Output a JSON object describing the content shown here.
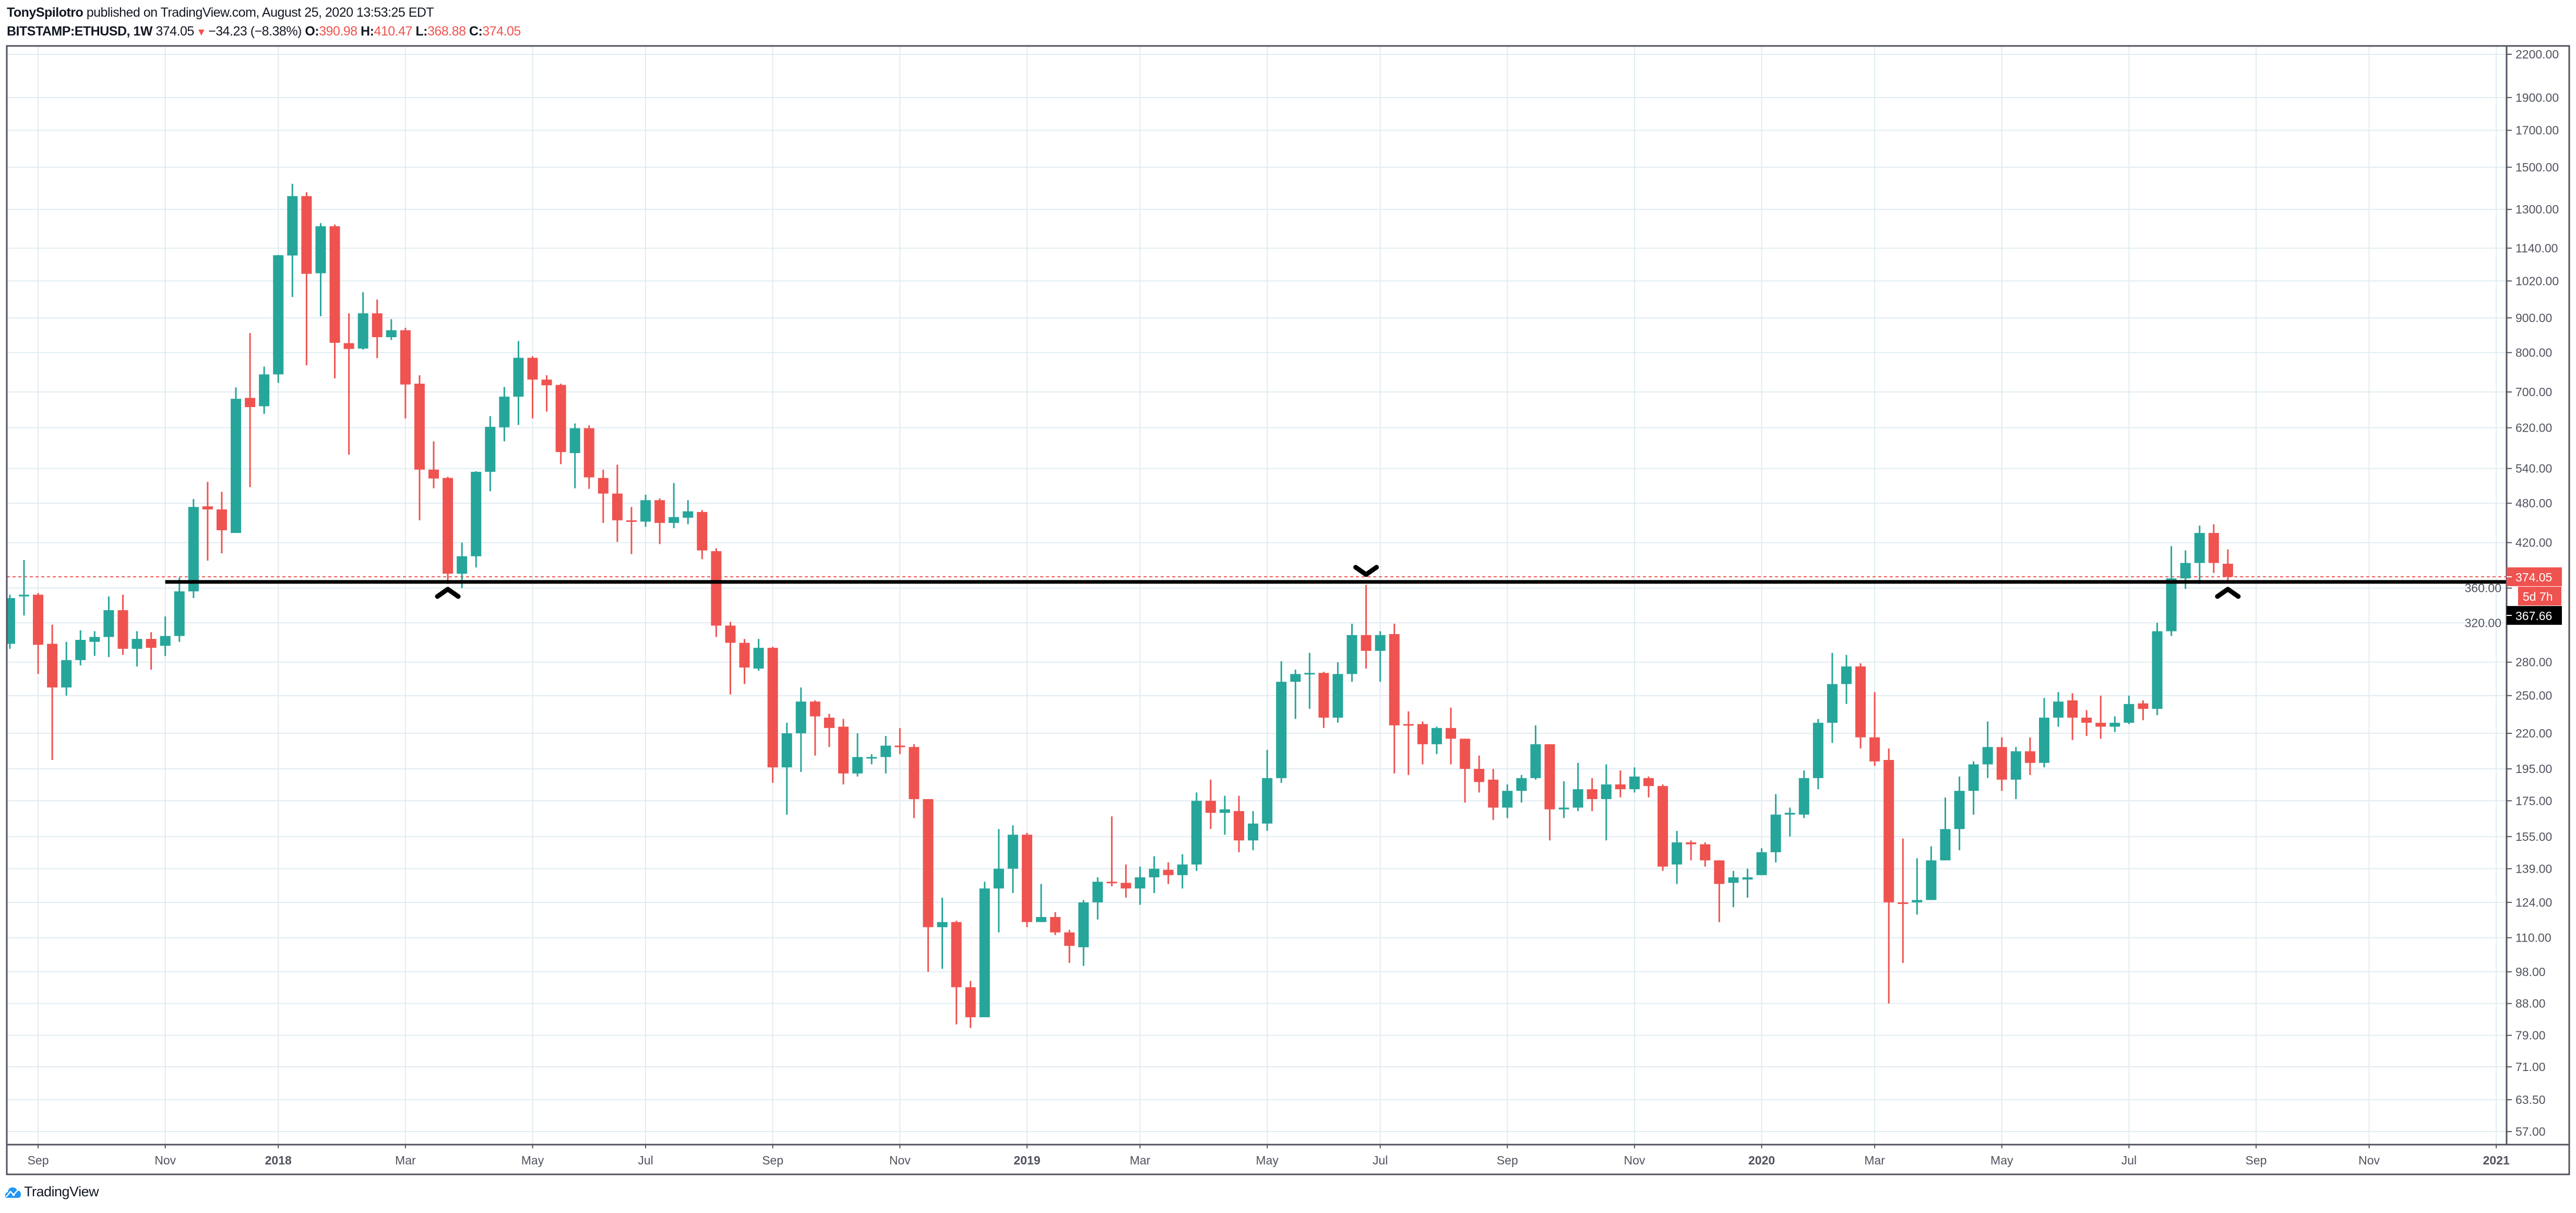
{
  "header": {
    "author": "TonySpilotro",
    "published": "published on TradingView.com, August 25, 2020 13:53:25 EDT",
    "symbol": "BITSTAMP:ETHUSD, 1W",
    "last": "374.05",
    "change": "−34.23 (−8.38%)",
    "open_label": "O:",
    "open": "390.98",
    "high_label": "H:",
    "high": "410.47",
    "low_label": "L:",
    "low": "368.88",
    "close_label": "C:",
    "close": "374.05"
  },
  "footer": {
    "brand": "TradingView"
  },
  "colors": {
    "up": "#26a69a",
    "down": "#ef5350",
    "grid": "#e1ecf2",
    "axis": "#50535e",
    "level_line": "#000000"
  },
  "chart_data": {
    "type": "candlestick",
    "symbol": "BITSTAMP:ETHUSD",
    "interval": "1W",
    "y_scale": "log",
    "grid": true,
    "price_axis": {
      "labels": [
        "2200.00",
        "1900.00",
        "1700.00",
        "1500.00",
        "1300.00",
        "1140.00",
        "1020.00",
        "900.00",
        "800.00",
        "700.00",
        "620.00",
        "540.00",
        "480.00",
        "420.00",
        "360.00",
        "320.00",
        "280.00",
        "250.00",
        "220.00",
        "195.00",
        "175.00",
        "155.00",
        "139.00",
        "124.00",
        "110.00",
        "98.00",
        "88.00",
        "79.00",
        "71.00",
        "63.50",
        "57.00"
      ]
    },
    "time_axis": {
      "ticks": [
        {
          "label": "Sep",
          "date": "2017-09-04"
        },
        {
          "label": "Nov",
          "date": "2017-11-06"
        },
        {
          "label": "2018",
          "date": "2018-01-01",
          "year": true
        },
        {
          "label": "Mar",
          "date": "2018-03-05"
        },
        {
          "label": "May",
          "date": "2018-05-07"
        },
        {
          "label": "Jul",
          "date": "2018-07-02"
        },
        {
          "label": "Sep",
          "date": "2018-09-03"
        },
        {
          "label": "Nov",
          "date": "2018-11-05"
        },
        {
          "label": "2019",
          "date": "2019-01-07",
          "year": true
        },
        {
          "label": "Mar",
          "date": "2019-03-04"
        },
        {
          "label": "May",
          "date": "2019-05-06"
        },
        {
          "label": "Jul",
          "date": "2019-07-01"
        },
        {
          "label": "Sep",
          "date": "2019-09-02"
        },
        {
          "label": "Nov",
          "date": "2019-11-04"
        },
        {
          "label": "2020",
          "date": "2020-01-06",
          "year": true
        },
        {
          "label": "Mar",
          "date": "2020-03-02"
        },
        {
          "label": "May",
          "date": "2020-05-04"
        },
        {
          "label": "Jul",
          "date": "2020-07-06"
        },
        {
          "label": "Sep",
          "date": "2020-09-07"
        },
        {
          "label": "Nov",
          "date": "2020-11-02"
        },
        {
          "label": "2021",
          "date": "2021-01-04",
          "year": true
        }
      ]
    },
    "last_price": {
      "value": 374.05,
      "label": "374.05",
      "countdown": "5d 7h"
    },
    "level": {
      "value": 367.66,
      "label": "367.66",
      "from": "2017-11-06"
    },
    "markers": [
      {
        "date": "2018-03-26",
        "shape": "chevron-up"
      },
      {
        "date": "2019-06-24",
        "shape": "chevron-down"
      },
      {
        "date": "2020-08-24",
        "shape": "chevron-up"
      }
    ],
    "candles_fields": [
      "date",
      "open",
      "high",
      "low",
      "close"
    ],
    "candles": [
      [
        "2017-08-21",
        298,
        352,
        293,
        348
      ],
      [
        "2017-08-28",
        350,
        396,
        328,
        352
      ],
      [
        "2017-09-04",
        352,
        354,
        269,
        297
      ],
      [
        "2017-09-11",
        298,
        318,
        201,
        257
      ],
      [
        "2017-09-18",
        257,
        300,
        250,
        282
      ],
      [
        "2017-09-25",
        282,
        312,
        277,
        302
      ],
      [
        "2017-10-02",
        300,
        311,
        286,
        305
      ],
      [
        "2017-10-09",
        305,
        350,
        285,
        334
      ],
      [
        "2017-10-16",
        334,
        352,
        287,
        293
      ],
      [
        "2017-10-23",
        293,
        311,
        276,
        303
      ],
      [
        "2017-10-30",
        303,
        310,
        273,
        294
      ],
      [
        "2017-11-06",
        296,
        327,
        286,
        306
      ],
      [
        "2017-11-13",
        306,
        373,
        300,
        356
      ],
      [
        "2017-11-20",
        356,
        487,
        348,
        474
      ],
      [
        "2017-11-27",
        475,
        516,
        395,
        470
      ],
      [
        "2017-12-04",
        470,
        499,
        405,
        438
      ],
      [
        "2017-12-11",
        434,
        711,
        434,
        684
      ],
      [
        "2017-12-18",
        686,
        855,
        507,
        665
      ],
      [
        "2017-12-25",
        667,
        763,
        650,
        743
      ],
      [
        "2018-01-01",
        743,
        1114,
        722,
        1113
      ],
      [
        "2018-01-08",
        1112,
        1418,
        966,
        1360
      ],
      [
        "2018-01-15",
        1360,
        1378,
        766,
        1045
      ],
      [
        "2018-01-22",
        1047,
        1241,
        905,
        1228
      ],
      [
        "2018-01-29",
        1228,
        1235,
        733,
        827
      ],
      [
        "2018-02-05",
        826,
        914,
        566,
        810
      ],
      [
        "2018-02-12",
        811,
        982,
        808,
        914
      ],
      [
        "2018-02-19",
        914,
        958,
        785,
        843
      ],
      [
        "2018-02-26",
        843,
        896,
        835,
        863
      ],
      [
        "2018-03-05",
        863,
        870,
        640,
        718
      ],
      [
        "2018-03-12",
        720,
        741,
        453,
        538
      ],
      [
        "2018-03-19",
        538,
        592,
        505,
        522
      ],
      [
        "2018-03-26",
        523,
        525,
        365,
        378
      ],
      [
        "2018-04-02",
        378,
        420,
        360,
        401
      ],
      [
        "2018-04-09",
        401,
        535,
        386,
        534
      ],
      [
        "2018-04-16",
        534,
        645,
        500,
        622
      ],
      [
        "2018-04-23",
        621,
        712,
        592,
        689
      ],
      [
        "2018-04-30",
        689,
        832,
        626,
        786
      ],
      [
        "2018-05-07",
        786,
        790,
        640,
        730
      ],
      [
        "2018-05-14",
        730,
        741,
        655,
        716
      ],
      [
        "2018-05-21",
        717,
        720,
        548,
        571
      ],
      [
        "2018-05-28",
        569,
        629,
        505,
        619
      ],
      [
        "2018-06-04",
        619,
        625,
        504,
        524
      ],
      [
        "2018-06-11",
        523,
        538,
        449,
        496
      ],
      [
        "2018-06-18",
        496,
        547,
        421,
        453
      ],
      [
        "2018-06-25",
        453,
        474,
        404,
        451
      ],
      [
        "2018-07-02",
        451,
        494,
        443,
        485
      ],
      [
        "2018-07-09",
        485,
        488,
        418,
        449
      ],
      [
        "2018-07-16",
        449,
        514,
        441,
        458
      ],
      [
        "2018-07-23",
        457,
        485,
        447,
        467
      ],
      [
        "2018-07-30",
        466,
        469,
        397,
        409
      ],
      [
        "2018-08-06",
        408,
        412,
        305,
        317
      ],
      [
        "2018-08-13",
        317,
        321,
        251,
        299
      ],
      [
        "2018-08-20",
        299,
        303,
        260,
        275
      ],
      [
        "2018-08-27",
        274,
        303,
        272,
        294
      ],
      [
        "2018-09-03",
        294,
        295,
        186,
        196
      ],
      [
        "2018-09-10",
        196,
        228,
        167,
        220
      ],
      [
        "2018-09-17",
        220,
        257,
        193,
        245
      ],
      [
        "2018-09-24",
        245,
        246,
        204,
        233
      ],
      [
        "2018-10-01",
        232,
        235,
        210,
        224
      ],
      [
        "2018-10-08",
        225,
        231,
        185,
        192
      ],
      [
        "2018-10-15",
        192,
        220,
        190,
        203
      ],
      [
        "2018-10-22",
        202,
        205,
        198,
        203
      ],
      [
        "2018-10-29",
        203,
        218,
        192,
        211
      ],
      [
        "2018-11-05",
        211,
        224,
        205,
        210
      ],
      [
        "2018-11-12",
        210,
        212,
        165,
        176
      ],
      [
        "2018-11-19",
        176,
        176,
        98,
        114
      ],
      [
        "2018-11-26",
        114,
        126,
        99,
        116
      ],
      [
        "2018-12-03",
        116,
        116.5,
        82,
        93
      ],
      [
        "2018-12-10",
        93,
        95,
        81,
        84
      ],
      [
        "2018-12-17",
        84,
        133,
        84,
        130
      ],
      [
        "2018-12-24",
        130,
        159,
        112,
        139
      ],
      [
        "2018-12-31",
        139,
        161,
        128,
        156
      ],
      [
        "2019-01-07",
        156,
        157,
        114,
        116
      ],
      [
        "2019-01-14",
        116,
        132,
        116,
        118
      ],
      [
        "2019-01-21",
        118,
        120,
        111,
        112
      ],
      [
        "2019-01-28",
        112,
        113,
        101,
        107
      ],
      [
        "2019-02-04",
        106.5,
        125,
        100,
        124
      ],
      [
        "2019-02-11",
        124,
        135,
        117,
        133
      ],
      [
        "2019-02-18",
        133,
        166,
        131,
        132.5
      ],
      [
        "2019-02-25",
        132.5,
        141,
        126,
        130
      ],
      [
        "2019-03-04",
        130,
        140,
        123,
        135
      ],
      [
        "2019-03-11",
        135,
        145,
        128,
        139
      ],
      [
        "2019-03-18",
        138.5,
        142,
        132,
        136
      ],
      [
        "2019-03-25",
        136,
        146,
        130,
        141
      ],
      [
        "2019-04-01",
        141,
        180,
        138,
        175
      ],
      [
        "2019-04-08",
        175,
        188,
        159,
        168
      ],
      [
        "2019-04-15",
        168,
        178,
        156,
        170
      ],
      [
        "2019-04-22",
        169,
        178,
        147,
        153
      ],
      [
        "2019-04-29",
        153,
        169,
        148,
        162
      ],
      [
        "2019-05-06",
        162,
        208,
        158,
        189
      ],
      [
        "2019-05-13",
        189,
        281,
        186,
        262
      ],
      [
        "2019-05-20",
        262,
        273,
        231,
        269
      ],
      [
        "2019-05-27",
        269,
        289,
        239,
        270
      ],
      [
        "2019-06-03",
        270,
        271,
        224,
        232
      ],
      [
        "2019-06-10",
        232,
        280,
        228,
        269
      ],
      [
        "2019-06-17",
        269,
        319,
        262,
        307
      ],
      [
        "2019-06-24",
        307,
        364,
        274,
        291
      ],
      [
        "2019-07-01",
        291,
        311,
        262,
        307
      ],
      [
        "2019-07-08",
        308,
        319,
        192,
        226
      ],
      [
        "2019-07-15",
        227,
        237,
        191,
        226
      ],
      [
        "2019-07-22",
        227,
        229,
        198,
        212
      ],
      [
        "2019-07-29",
        212,
        225,
        205,
        224
      ],
      [
        "2019-08-05",
        224,
        240,
        198,
        216
      ],
      [
        "2019-08-12",
        216,
        216,
        174,
        195
      ],
      [
        "2019-08-19",
        195,
        204,
        180,
        186.5
      ],
      [
        "2019-08-26",
        188,
        195,
        164,
        171
      ],
      [
        "2019-09-02",
        171,
        185,
        165,
        181
      ],
      [
        "2019-09-09",
        181,
        191,
        174,
        189
      ],
      [
        "2019-09-16",
        189,
        226,
        188,
        212
      ],
      [
        "2019-09-23",
        212,
        212,
        153,
        170
      ],
      [
        "2019-09-30",
        170,
        187,
        165,
        171
      ],
      [
        "2019-10-07",
        171,
        199,
        169,
        182
      ],
      [
        "2019-10-14",
        182,
        189,
        169,
        176
      ],
      [
        "2019-10-21",
        176,
        198,
        153,
        185
      ],
      [
        "2019-10-28",
        185,
        194,
        177,
        182
      ],
      [
        "2019-11-04",
        182,
        196,
        180,
        190
      ],
      [
        "2019-11-11",
        189,
        190,
        177,
        184
      ],
      [
        "2019-11-18",
        184,
        185,
        138,
        140
      ],
      [
        "2019-11-25",
        141,
        158,
        132,
        152
      ],
      [
        "2019-12-02",
        152,
        153,
        143,
        151
      ],
      [
        "2019-12-09",
        151,
        152,
        140,
        143
      ],
      [
        "2019-12-16",
        143,
        143,
        116,
        132
      ],
      [
        "2019-12-23",
        132.5,
        138,
        122,
        135
      ],
      [
        "2019-12-30",
        134,
        139,
        126,
        135
      ],
      [
        "2020-01-06",
        136,
        149,
        136,
        147
      ],
      [
        "2020-01-13",
        147,
        179,
        142,
        167
      ],
      [
        "2020-01-20",
        167,
        171,
        155,
        168
      ],
      [
        "2020-01-27",
        167,
        194,
        165,
        189
      ],
      [
        "2020-02-03",
        189,
        231,
        182,
        228
      ],
      [
        "2020-02-10",
        228,
        289,
        213,
        260
      ],
      [
        "2020-02-17",
        260,
        287,
        243,
        276
      ],
      [
        "2020-02-24",
        276,
        279,
        209,
        217
      ],
      [
        "2020-03-02",
        217,
        253,
        197,
        200
      ],
      [
        "2020-03-09",
        201,
        209,
        88,
        124
      ],
      [
        "2020-03-16",
        124,
        154,
        101,
        123.5
      ],
      [
        "2020-03-23",
        124,
        144,
        119,
        125
      ],
      [
        "2020-03-30",
        125,
        150,
        125,
        143
      ],
      [
        "2020-04-06",
        143,
        177,
        143,
        159
      ],
      [
        "2020-04-13",
        159,
        190,
        148,
        181
      ],
      [
        "2020-04-20",
        181,
        200,
        167,
        198
      ],
      [
        "2020-04-27",
        198,
        229,
        189,
        210
      ],
      [
        "2020-05-04",
        210,
        217,
        181,
        188
      ],
      [
        "2020-05-11",
        188,
        210,
        176,
        207
      ],
      [
        "2020-05-18",
        207,
        217,
        191,
        199
      ],
      [
        "2020-05-25",
        199,
        248,
        196,
        232
      ],
      [
        "2020-06-01",
        232,
        253,
        225,
        245
      ],
      [
        "2020-06-08",
        246,
        252,
        215,
        232
      ],
      [
        "2020-06-15",
        232,
        238,
        218,
        228
      ],
      [
        "2020-06-22",
        228,
        250,
        216,
        225
      ],
      [
        "2020-06-29",
        225,
        233,
        221,
        228
      ],
      [
        "2020-07-06",
        228,
        250,
        227,
        243
      ],
      [
        "2020-07-13",
        243.5,
        246,
        230,
        239
      ],
      [
        "2020-07-20",
        239,
        320,
        234,
        311
      ],
      [
        "2020-07-27",
        311,
        415,
        306,
        372
      ],
      [
        "2020-08-03",
        372,
        409,
        359,
        392
      ],
      [
        "2020-08-10",
        392,
        445,
        365,
        434
      ],
      [
        "2020-08-17",
        434,
        447,
        379,
        392
      ],
      [
        "2020-08-24",
        390.98,
        410.47,
        368.88,
        374.05
      ]
    ]
  }
}
